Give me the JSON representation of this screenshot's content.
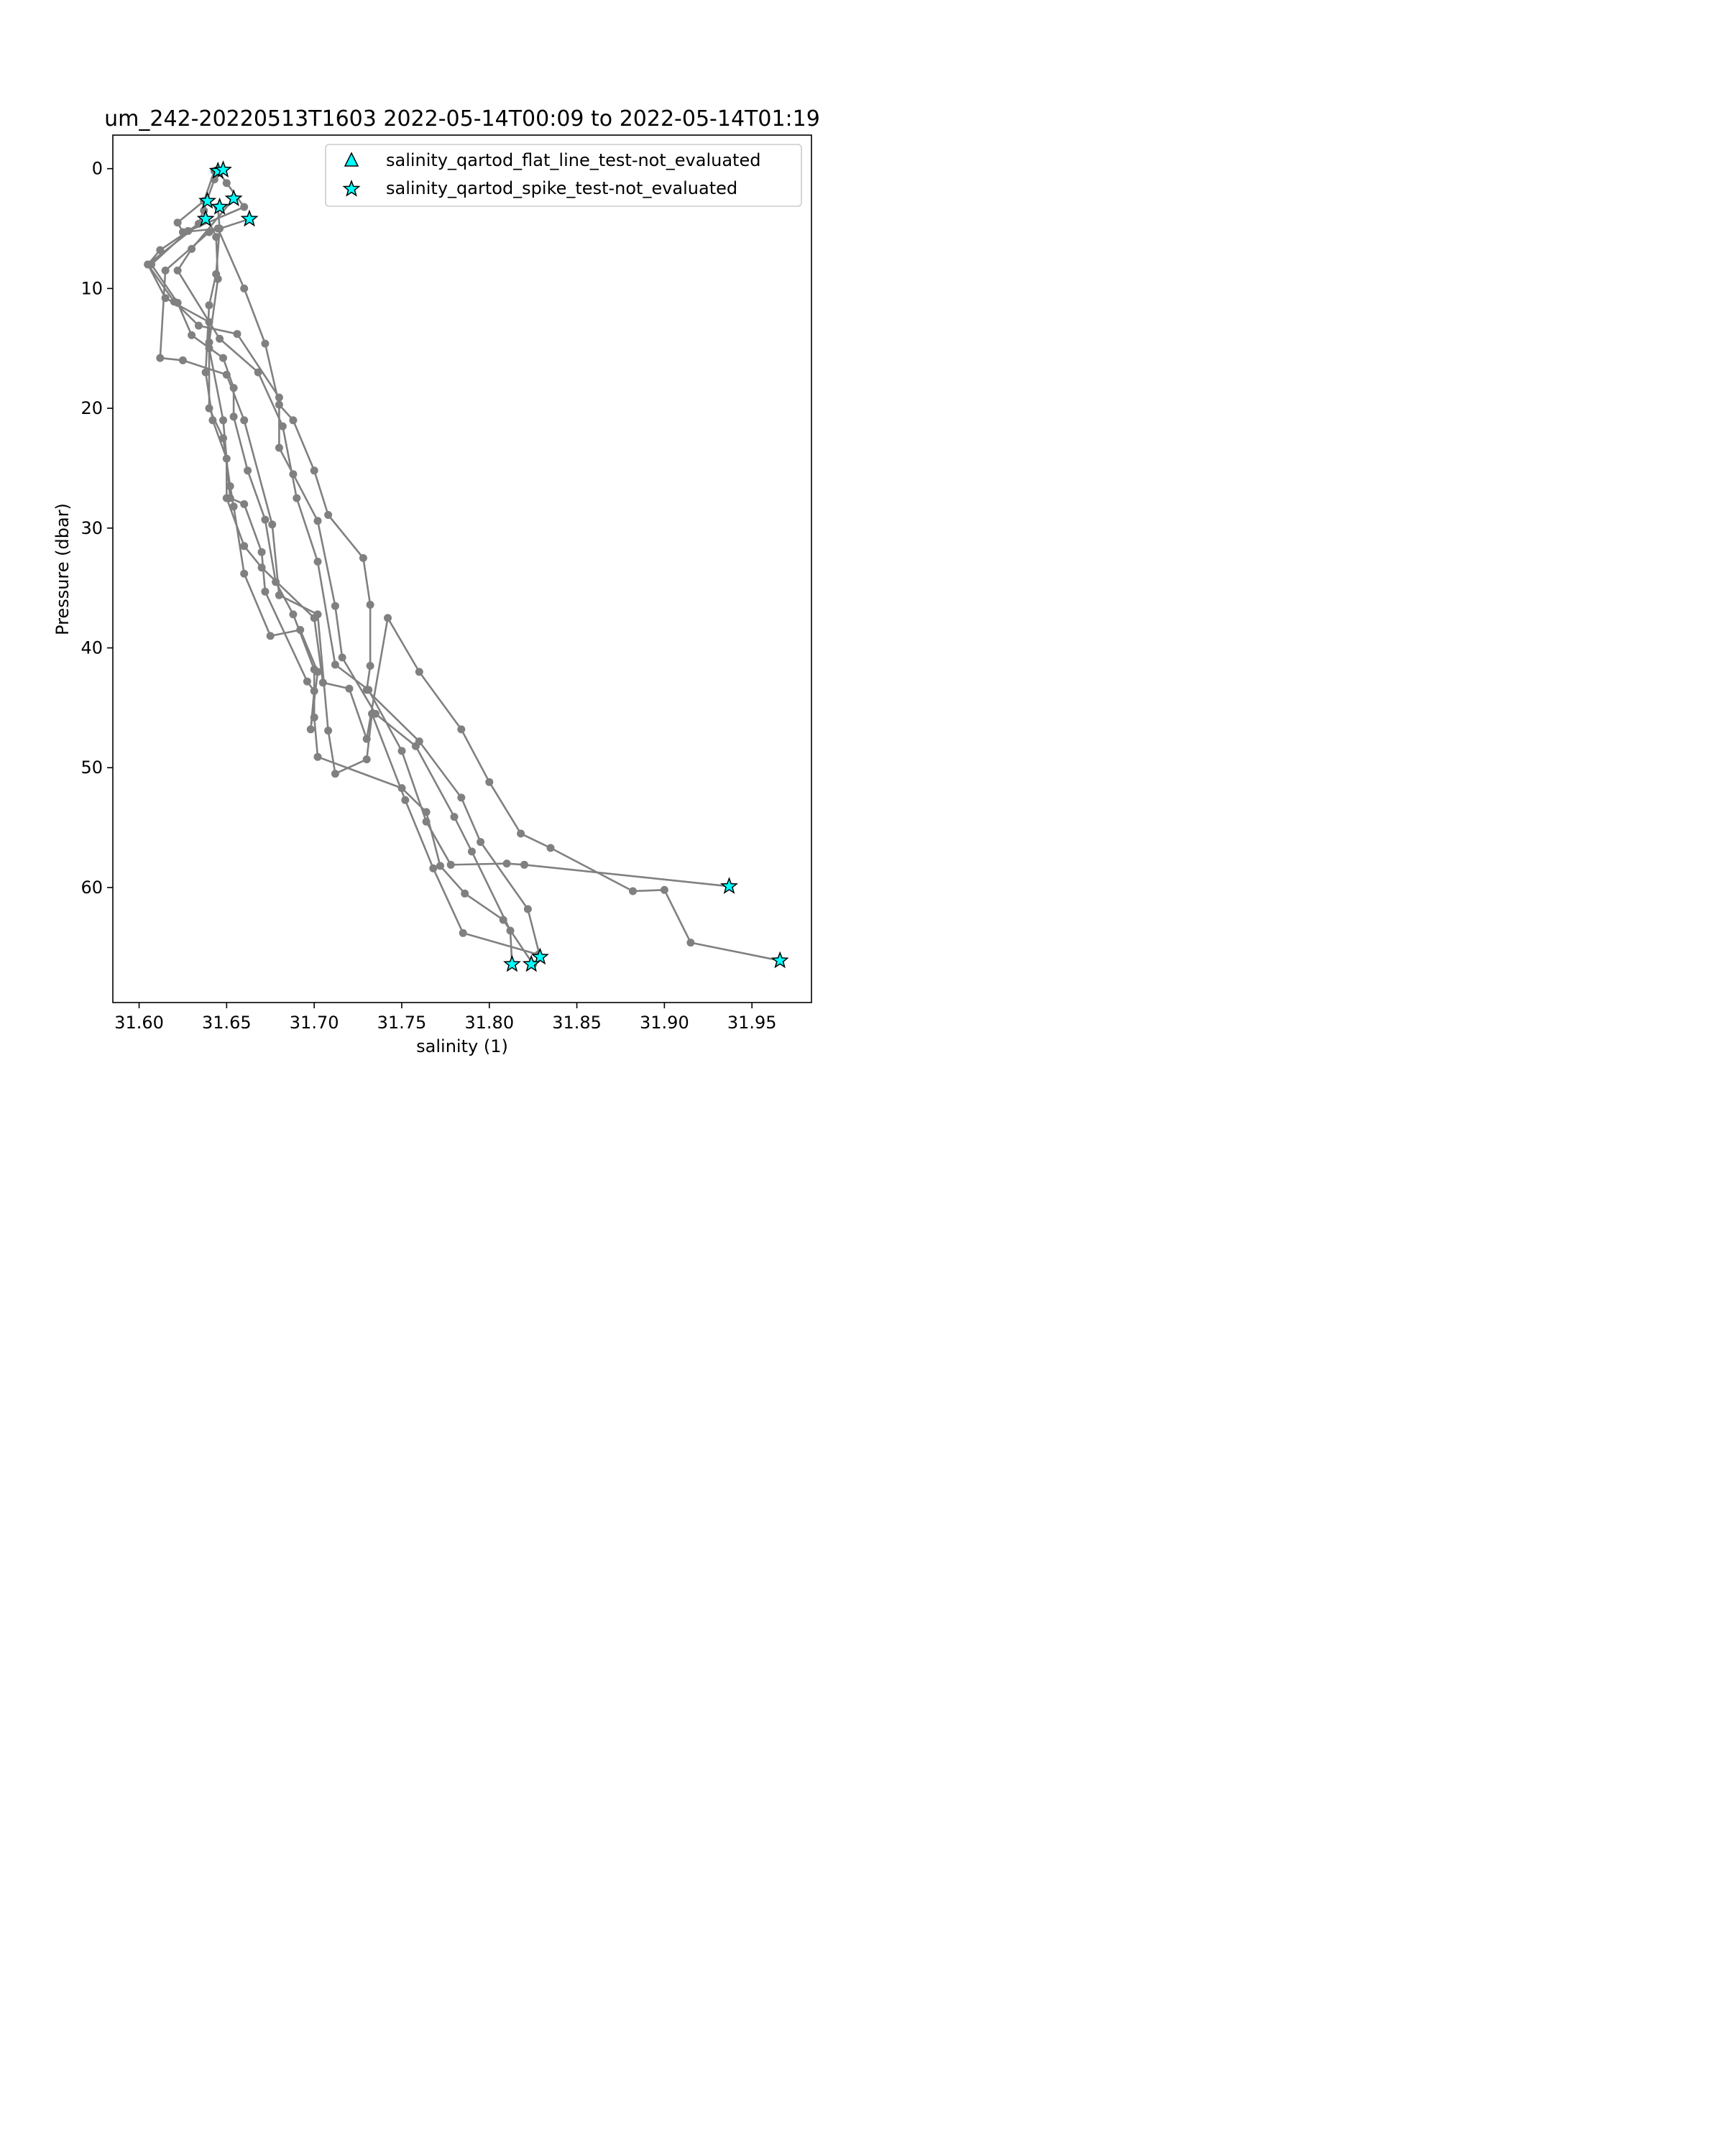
{
  "chart_data": {
    "type": "line",
    "title": "um_242-20220513T1603 2022-05-14T00:09 to 2022-05-14T01:19",
    "xlabel": "salinity (1)",
    "ylabel": "Pressure (dbar)",
    "xlim": [
      31.585,
      31.984
    ],
    "ylim": [
      69.6,
      -2.8
    ],
    "y_inverted": true,
    "x_ticks": [
      "31.60",
      "31.65",
      "31.70",
      "31.75",
      "31.80",
      "31.85",
      "31.90",
      "31.95"
    ],
    "y_ticks": [
      "0",
      "10",
      "20",
      "30",
      "40",
      "50",
      "60"
    ],
    "grid": false,
    "legend_position": "top-right",
    "legend": [
      {
        "label": "salinity_qartod_flat_line_test-not_evaluated",
        "marker": "triangle",
        "color": "#00ffff"
      },
      {
        "label": "salinity_qartod_spike_test-not_evaluated",
        "marker": "star",
        "color": "#00ffff"
      }
    ],
    "line_color": "#808080",
    "series": [
      {
        "points": [
          [
            31.645,
            0.2
          ],
          [
            31.65,
            1.2
          ],
          [
            31.66,
            3.2
          ],
          [
            31.628,
            5.2
          ],
          [
            31.607,
            8.0
          ],
          [
            31.622,
            11.2
          ],
          [
            31.63,
            13.9
          ],
          [
            31.648,
            15.8
          ],
          [
            31.654,
            18.3
          ],
          [
            31.654,
            20.7
          ],
          [
            31.662,
            25.2
          ],
          [
            31.672,
            29.3
          ],
          [
            31.678,
            34.5
          ],
          [
            31.688,
            37.2
          ],
          [
            31.7,
            41.8
          ],
          [
            31.7,
            45.8
          ],
          [
            31.702,
            49.1
          ],
          [
            31.75,
            51.7
          ],
          [
            31.764,
            53.7
          ],
          [
            31.772,
            58.2
          ],
          [
            31.786,
            60.5
          ],
          [
            31.808,
            62.7
          ],
          [
            31.825,
            66.4
          ]
        ]
      },
      {
        "points": [
          [
            31.648,
            0.1
          ],
          [
            31.643,
            0.9
          ],
          [
            31.634,
            4.6
          ],
          [
            31.612,
            6.8
          ],
          [
            31.605,
            8.0
          ],
          [
            31.62,
            11.1
          ],
          [
            31.634,
            13.1
          ],
          [
            31.656,
            13.8
          ],
          [
            31.68,
            19.1
          ],
          [
            31.68,
            23.3
          ],
          [
            31.688,
            25.5
          ],
          [
            31.702,
            29.4
          ],
          [
            31.712,
            36.5
          ],
          [
            31.716,
            40.8
          ],
          [
            31.735,
            45.5
          ],
          [
            31.758,
            48.2
          ],
          [
            31.78,
            54.1
          ],
          [
            31.79,
            57.0
          ],
          [
            31.812,
            63.6
          ],
          [
            31.813,
            66.4
          ]
        ]
      },
      {
        "points": [
          [
            31.643,
            0.2
          ],
          [
            31.637,
            2.7
          ],
          [
            31.622,
            4.5
          ],
          [
            31.625,
            5.3
          ],
          [
            31.645,
            5.0
          ],
          [
            31.66,
            10.0
          ],
          [
            31.672,
            14.6
          ],
          [
            31.68,
            19.7
          ],
          [
            31.688,
            21.0
          ],
          [
            31.7,
            25.2
          ],
          [
            31.708,
            28.9
          ],
          [
            31.728,
            32.5
          ],
          [
            31.732,
            36.4
          ],
          [
            31.732,
            41.5
          ],
          [
            31.73,
            43.5
          ],
          [
            31.76,
            47.8
          ],
          [
            31.784,
            52.5
          ],
          [
            31.795,
            56.2
          ],
          [
            31.822,
            61.8
          ],
          [
            31.829,
            65.8
          ]
        ]
      },
      {
        "points": [
          [
            31.645,
            3.2
          ],
          [
            31.646,
            5.0
          ],
          [
            31.644,
            8.8
          ],
          [
            31.64,
            11.4
          ],
          [
            31.638,
            17.0
          ],
          [
            31.642,
            21.0
          ],
          [
            31.65,
            24.2
          ],
          [
            31.65,
            27.5
          ],
          [
            31.66,
            31.5
          ],
          [
            31.67,
            33.3
          ],
          [
            31.7,
            37.5
          ],
          [
            31.705,
            42.9
          ],
          [
            31.72,
            43.4
          ],
          [
            31.73,
            47.6
          ],
          [
            31.742,
            37.5
          ],
          [
            31.76,
            42.0
          ],
          [
            31.784,
            46.8
          ],
          [
            31.8,
            51.2
          ],
          [
            31.818,
            55.5
          ],
          [
            31.835,
            56.7
          ],
          [
            31.882,
            60.3
          ],
          [
            31.9,
            60.2
          ],
          [
            31.915,
            64.6
          ],
          [
            31.966,
            66.1
          ]
        ]
      },
      {
        "points": [
          [
            31.654,
            2.5
          ],
          [
            31.63,
            6.7
          ],
          [
            31.622,
            8.5
          ],
          [
            31.646,
            14.2
          ],
          [
            31.668,
            17.0
          ],
          [
            31.682,
            21.5
          ],
          [
            31.69,
            27.5
          ],
          [
            31.702,
            32.8
          ],
          [
            31.712,
            41.4
          ],
          [
            31.731,
            43.5
          ],
          [
            31.75,
            48.6
          ],
          [
            31.764,
            54.5
          ],
          [
            31.778,
            58.1
          ],
          [
            31.81,
            58.0
          ],
          [
            31.82,
            58.1
          ],
          [
            31.937,
            59.9
          ]
        ]
      },
      {
        "points": [
          [
            31.663,
            4.2
          ],
          [
            31.64,
            5.3
          ],
          [
            31.615,
            8.5
          ],
          [
            31.612,
            15.8
          ],
          [
            31.625,
            16.0
          ],
          [
            31.65,
            17.2
          ],
          [
            31.66,
            21.0
          ],
          [
            31.676,
            29.7
          ],
          [
            31.68,
            35.6
          ],
          [
            31.702,
            37.2
          ],
          [
            31.708,
            46.9
          ],
          [
            31.712,
            50.5
          ],
          [
            31.73,
            49.3
          ],
          [
            31.733,
            45.5
          ],
          [
            31.752,
            52.7
          ],
          [
            31.768,
            58.4
          ],
          [
            31.785,
            63.8
          ],
          [
            31.828,
            65.6
          ]
        ]
      },
      {
        "points": [
          [
            31.638,
            4.2
          ],
          [
            31.605,
            8.0
          ],
          [
            31.615,
            10.8
          ],
          [
            31.64,
            12.8
          ],
          [
            31.64,
            15.0
          ],
          [
            31.648,
            21.0
          ],
          [
            31.652,
            27.5
          ],
          [
            31.66,
            28.0
          ],
          [
            31.67,
            32.0
          ],
          [
            31.672,
            35.3
          ],
          [
            31.696,
            42.8
          ],
          [
            31.7,
            43.6
          ],
          [
            31.698,
            46.8
          ],
          [
            31.702,
            42.0
          ],
          [
            31.692,
            38.5
          ],
          [
            31.675,
            39.0
          ],
          [
            31.66,
            33.8
          ],
          [
            31.654,
            28.2
          ],
          [
            31.652,
            26.5
          ],
          [
            31.648,
            22.5
          ],
          [
            31.64,
            20.0
          ],
          [
            31.64,
            14.5
          ],
          [
            31.645,
            9.2
          ],
          [
            31.644,
            5.7
          ],
          [
            31.637,
            3.5
          ]
        ]
      }
    ],
    "flagged_points": [
      [
        31.645,
        0.2
      ],
      [
        31.648,
        0.1
      ],
      [
        31.639,
        2.7
      ],
      [
        31.654,
        2.5
      ],
      [
        31.646,
        3.2
      ],
      [
        31.638,
        4.2
      ],
      [
        31.663,
        4.2
      ],
      [
        31.937,
        59.9
      ],
      [
        31.829,
        65.8
      ],
      [
        31.813,
        66.4
      ],
      [
        31.824,
        66.4
      ],
      [
        31.966,
        66.1
      ]
    ]
  }
}
